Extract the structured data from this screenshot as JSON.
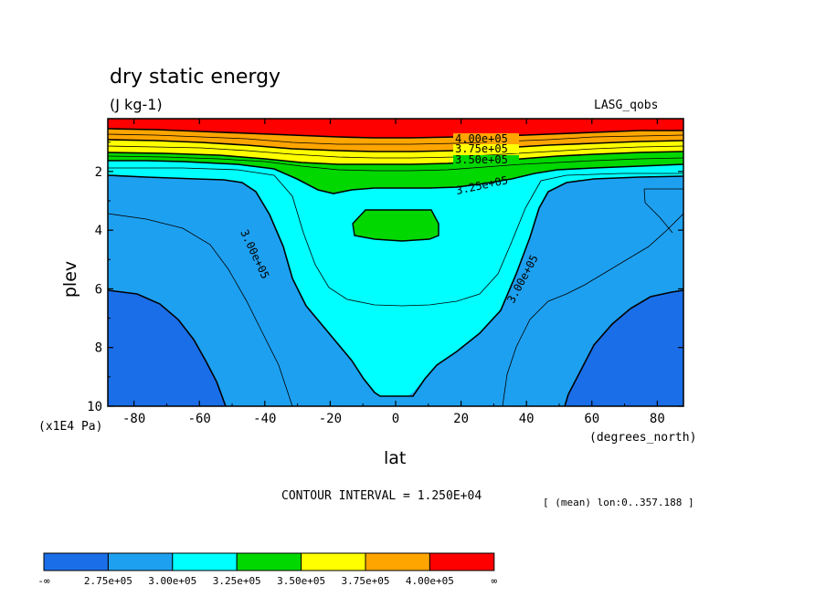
{
  "chart_data": {
    "type": "contour",
    "title": "dry static energy",
    "units": "(J kg-1)",
    "dataset": "LASG_qobs",
    "xlabel": "lat",
    "ylabel": "plev",
    "x_units": "(degrees_north)",
    "y_units": "(x1E4 Pa)",
    "xlim": [
      -88,
      88
    ],
    "ylim": [
      10,
      0.2
    ],
    "x_ticks": [
      "-80",
      "-60",
      "-40",
      "-20",
      "0",
      "20",
      "40",
      "60",
      "80"
    ],
    "x_tick_values": [
      -80,
      -60,
      -40,
      -20,
      0,
      20,
      40,
      60,
      80
    ],
    "y_ticks": [
      "2",
      "4",
      "6",
      "8",
      "10"
    ],
    "y_tick_values": [
      2,
      4,
      6,
      8,
      10
    ],
    "contour_interval_text": "CONTOUR INTERVAL = 1.250E+04",
    "mean_note": "[ (mean) lon:0..357.188 ]",
    "contour_labels": [
      "4.00e+05",
      "3.75e+05",
      "3.50e+05",
      "3.25e+05",
      "3.00e+05",
      "3.00e+05"
    ],
    "levels": [
      275000,
      300000,
      325000,
      350000,
      375000,
      400000
    ],
    "colorbar": {
      "colors": [
        "#1a6ee8",
        "#1ea0f0",
        "#00ffff",
        "#00d800",
        "#ffff00",
        "#ffa500",
        "#ff0000"
      ],
      "labels": [
        "-∞",
        "2.75e+05",
        "3.00e+05",
        "3.25e+05",
        "3.50e+05",
        "3.75e+05",
        "4.00e+05",
        "∞"
      ]
    }
  }
}
